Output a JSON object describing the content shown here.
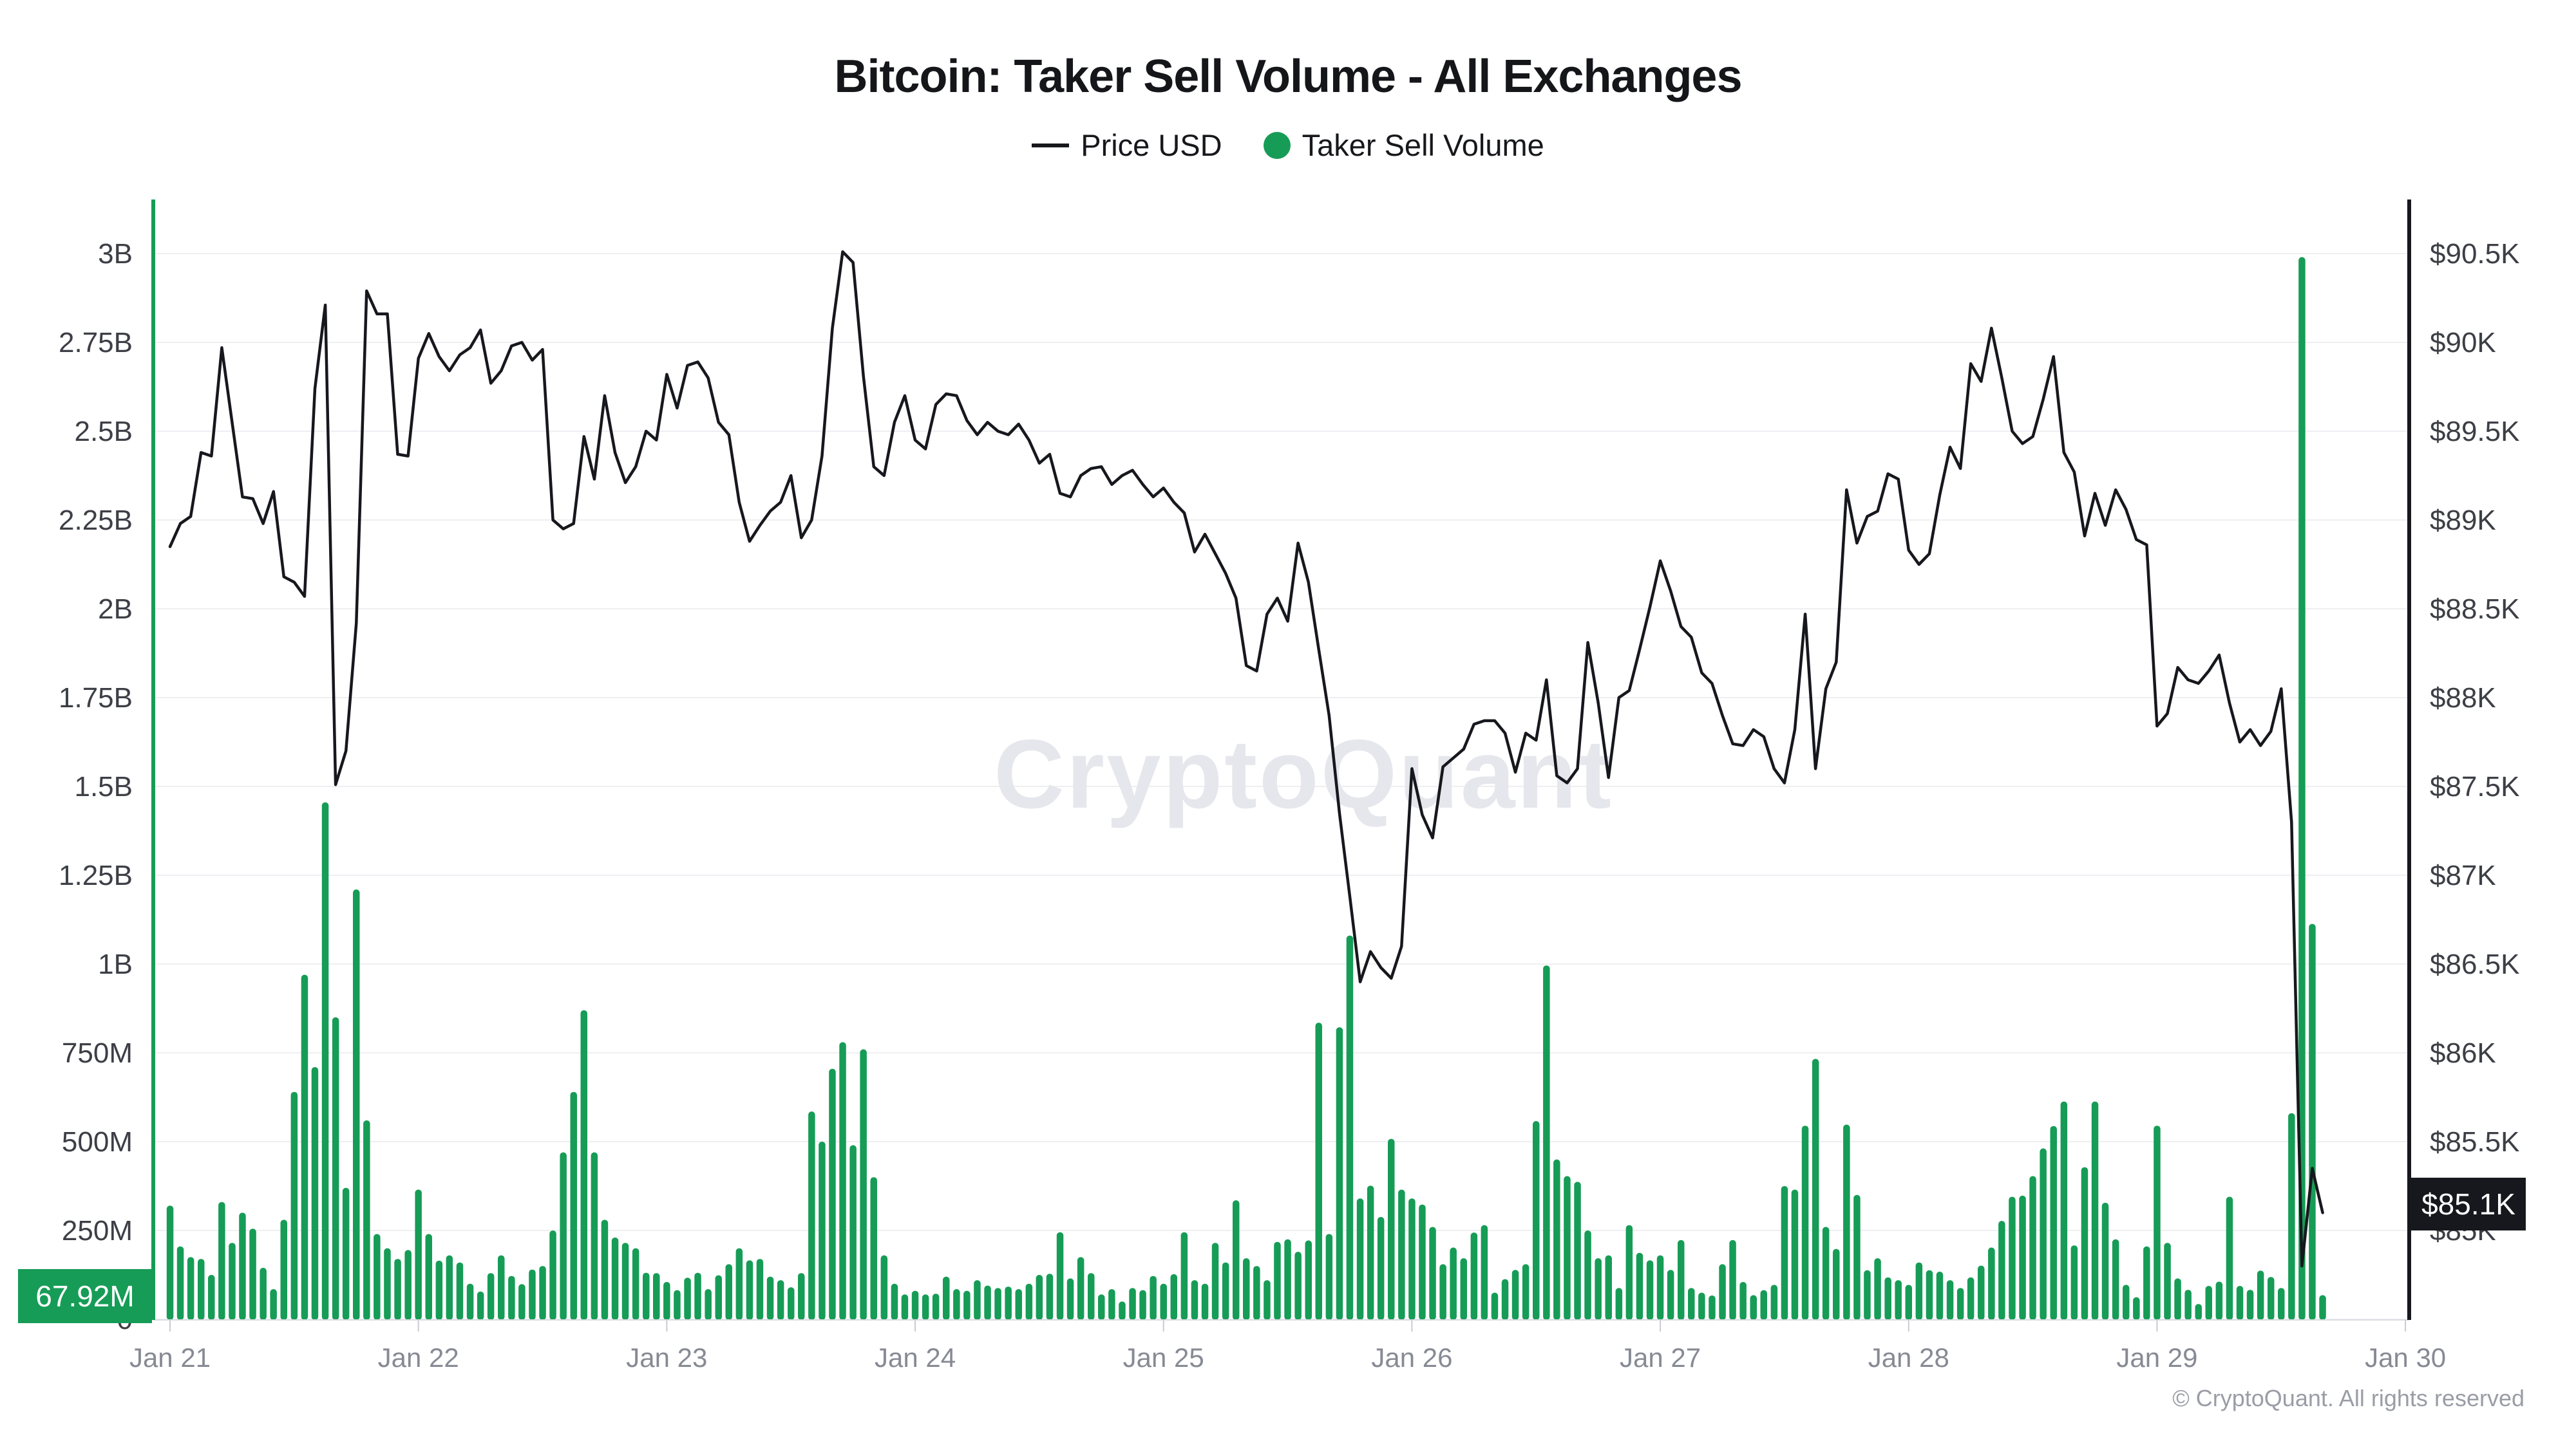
{
  "header": {
    "title": "Bitcoin: Taker Sell Volume - All Exchanges",
    "legend": [
      {
        "label": "Price USD",
        "type": "line"
      },
      {
        "label": "Taker Sell Volume",
        "type": "dot"
      }
    ]
  },
  "watermark": "CryptoQuant",
  "badges": {
    "volume_current": "67.92M",
    "price_current": "$85.1K"
  },
  "footer": {
    "copyright": "© CryptoQuant. All rights reserved"
  },
  "colors": {
    "accent_green": "#169c56",
    "price_line": "#17181d",
    "badge_dark": "#17181d",
    "grid": "#efeff3",
    "baseline": "#dcdde2",
    "tick": "#c9cbd2",
    "axis_text": "#3d3f46",
    "date_text": "#878a94",
    "watermark": "#e6e7ec"
  },
  "chart_data": {
    "type": "bar",
    "title": "Bitcoin: Taker Sell Volume - All Exchanges",
    "x_axis": {
      "tick_labels": [
        "Jan 21",
        "Jan 22",
        "Jan 23",
        "Jan 24",
        "Jan 25",
        "Jan 26",
        "Jan 27",
        "Jan 28",
        "Jan 29",
        "Jan 30"
      ],
      "start": "Jan 21 00:00",
      "interval_hours": 1,
      "grid": false
    },
    "left_axis": {
      "title": "Taker Sell Volume",
      "labels": [
        "3B",
        "2.75B",
        "2.5B",
        "2.25B",
        "2B",
        "1.75B",
        "1.5B",
        "1.25B",
        "1B",
        "750M",
        "500M",
        "250M",
        "0"
      ],
      "range_usd": [
        0,
        3000000000
      ],
      "unit": "millions USD"
    },
    "right_axis": {
      "title": "Price USD",
      "labels": [
        "$90.5K",
        "$90K",
        "$89.5K",
        "$89K",
        "$88.5K",
        "$88K",
        "$87.5K",
        "$87K",
        "$86.5K",
        "$86K",
        "$85.5K",
        "$85K"
      ],
      "range_usd": [
        85000,
        90500
      ],
      "unit": "thousands USD"
    },
    "series": [
      {
        "name": "Taker Sell Volume",
        "type": "bar",
        "axis": "left",
        "unit": "millions USD",
        "values": [
          320,
          205,
          175,
          170,
          125,
          330,
          215,
          300,
          255,
          145,
          85,
          280,
          640,
          970,
          710,
          1455,
          850,
          370,
          1210,
          560,
          240,
          200,
          170,
          195,
          365,
          240,
          165,
          180,
          160,
          100,
          78,
          130,
          180,
          122,
          99,
          140,
          150,
          250,
          470,
          640,
          870,
          470,
          280,
          230,
          215,
          200,
          131,
          130,
          105,
          82,
          117,
          131,
          85,
          124,
          155,
          200,
          166,
          170,
          120,
          110,
          90,
          130,
          585,
          500,
          705,
          780,
          490,
          760,
          400,
          180,
          100,
          70,
          80,
          70,
          72,
          120,
          85,
          80,
          110,
          95,
          88,
          92,
          85,
          100,
          125,
          128,
          245,
          115,
          175,
          130,
          70,
          85,
          50,
          88,
          82,
          122,
          100,
          127,
          245,
          110,
          100,
          215,
          160,
          335,
          172,
          150,
          110,
          218,
          225,
          190,
          222,
          835,
          240,
          822,
          1080,
          340,
          376,
          288,
          508,
          365,
          340,
          323,
          260,
          155,
          202,
          172,
          244,
          265,
          75,
          113,
          139,
          155,
          558,
          996,
          450,
          403,
          387,
          250,
          172,
          180,
          88,
          265,
          187,
          166,
          180,
          139,
          223,
          88,
          75,
          67,
          155,
          223,
          105,
          68,
          82,
          97,
          375,
          365,
          545,
          733,
          260,
          198,
          548,
          350,
          138,
          172,
          118,
          110,
          97,
          160,
          138,
          134,
          110,
          88,
          118,
          151,
          202,
          277,
          345,
          348,
          403,
          481,
          544,
          613,
          208,
          428,
          613,
          328,
          225,
          97,
          62,
          205,
          545,
          215,
          115,
          83,
          43,
          94,
          106,
          345,
          94,
          83,
          137,
          119,
          88,
          580,
          2990,
          1113,
          67.92
        ]
      },
      {
        "name": "Price USD",
        "type": "line",
        "axis": "right",
        "unit": "thousands USD",
        "values": [
          88.85,
          88.98,
          89.02,
          89.38,
          89.36,
          89.97,
          89.55,
          89.13,
          89.12,
          88.98,
          89.16,
          88.68,
          88.65,
          88.57,
          89.74,
          90.21,
          87.51,
          87.7,
          88.42,
          90.29,
          90.16,
          90.16,
          89.37,
          89.36,
          89.91,
          90.05,
          89.92,
          89.84,
          89.93,
          89.97,
          90.07,
          89.77,
          89.84,
          89.98,
          90.0,
          89.9,
          89.96,
          89.0,
          88.95,
          88.98,
          89.47,
          89.23,
          89.7,
          89.38,
          89.21,
          89.3,
          89.5,
          89.45,
          89.82,
          89.63,
          89.87,
          89.89,
          89.8,
          89.55,
          89.48,
          89.1,
          88.88,
          88.97,
          89.05,
          89.1,
          89.25,
          88.9,
          89.0,
          89.36,
          90.08,
          90.51,
          90.45,
          89.81,
          89.3,
          89.25,
          89.55,
          89.7,
          89.45,
          89.4,
          89.65,
          89.71,
          89.7,
          89.56,
          89.48,
          89.55,
          89.5,
          89.48,
          89.54,
          89.45,
          89.32,
          89.37,
          89.15,
          89.13,
          89.25,
          89.29,
          89.3,
          89.2,
          89.25,
          89.28,
          89.2,
          89.13,
          89.18,
          89.1,
          89.04,
          88.82,
          88.92,
          88.81,
          88.7,
          88.56,
          88.18,
          88.15,
          88.47,
          88.56,
          88.43,
          88.87,
          88.65,
          88.27,
          87.9,
          87.35,
          86.88,
          86.4,
          86.57,
          86.48,
          86.42,
          86.6,
          87.6,
          87.34,
          87.21,
          87.61,
          87.66,
          87.71,
          87.85,
          87.87,
          87.87,
          87.8,
          87.58,
          87.8,
          87.76,
          88.1,
          87.56,
          87.52,
          87.6,
          88.31,
          87.97,
          87.55,
          88.0,
          88.04,
          88.27,
          88.51,
          88.77,
          88.6,
          88.4,
          88.34,
          88.14,
          88.08,
          87.9,
          87.74,
          87.73,
          87.82,
          87.78,
          87.6,
          87.52,
          87.82,
          88.47,
          87.6,
          88.05,
          88.2,
          89.17,
          88.87,
          89.02,
          89.05,
          89.26,
          89.23,
          88.83,
          88.75,
          88.81,
          89.14,
          89.41,
          89.29,
          89.88,
          89.78,
          90.08,
          89.8,
          89.5,
          89.43,
          89.47,
          89.68,
          89.92,
          89.38,
          89.27,
          88.91,
          89.15,
          88.97,
          89.17,
          89.06,
          88.89,
          88.86,
          87.84,
          87.91,
          88.17,
          88.1,
          88.08,
          88.15,
          88.24,
          87.97,
          87.75,
          87.82,
          87.73,
          87.81,
          88.05,
          87.3,
          84.8,
          85.35,
          85.1
        ]
      }
    ],
    "latest": {
      "taker_sell_volume": "67.92M",
      "price_usd": "$85.1K"
    }
  }
}
